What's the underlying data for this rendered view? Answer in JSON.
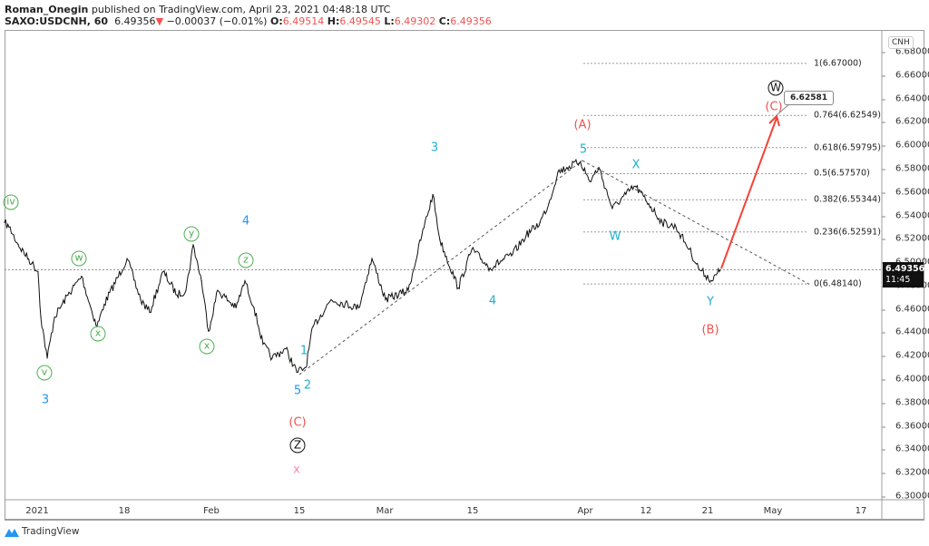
{
  "header": {
    "author": "Roman_Onegin",
    "published_text": "published on TradingView.com, April 23, 2021 04:48:18 UTC",
    "symbol": "SAXO:USDCNH, 60",
    "last": "6.49356",
    "change": "−0.00037 (−0.01%)",
    "o_label": "O:",
    "o": "6.49514",
    "h_label": "H:",
    "h": "6.49545",
    "l_label": "L:",
    "l": "6.49302",
    "c_label": "C:",
    "c": "6.49356",
    "down_arrow_icon": "triangle-down"
  },
  "currency_button": "CNH",
  "price_tag": {
    "price": "6.49356",
    "countdown": "11:45"
  },
  "callout": "6.62581",
  "footer": {
    "brand": "TradingView",
    "logo_icon": "tradingview-logo"
  },
  "colors": {
    "down": "#ef5350",
    "green_wave": "#4caf50",
    "blue_wave": "#2196f3",
    "cyan_wave": "#1eb0d0",
    "red_wave": "#ef5350",
    "pink_wave": "#f48fb1",
    "arrow": "#f44336"
  },
  "chart_data": {
    "type": "line",
    "symbol": "SAXO:USDCNH",
    "interval": "60",
    "ylim": [
      6.29,
      6.69
    ],
    "y_ticks": [
      "6.68000",
      "6.66000",
      "6.64000",
      "6.62000",
      "6.60000",
      "6.58000",
      "6.56000",
      "6.54000",
      "6.52000",
      "6.50000",
      "6.48000",
      "6.46000",
      "6.44000",
      "6.42000",
      "6.40000",
      "6.38000",
      "6.36000",
      "6.34000",
      "6.32000",
      "6.30000"
    ],
    "x_ticks": [
      "2021",
      "18",
      "Feb",
      "15",
      "Mar",
      "15",
      "Apr",
      "12",
      "21",
      "May",
      "17"
    ],
    "series": [
      [
        "2020-12-25 15:00",
        6.534
      ],
      [
        "2020-12-26 12:00",
        6.53
      ],
      [
        "2020-12-28 07:00",
        6.515
      ],
      [
        "2020-12-30 23:00",
        6.499
      ],
      [
        "2021-01-01 04:00",
        6.492
      ],
      [
        "2021-01-01 17:00",
        6.453
      ],
      [
        "2021-01-02 23:00",
        6.418
      ],
      [
        "2021-01-04 09:00",
        6.453
      ],
      [
        "2021-01-07 00:00",
        6.472
      ],
      [
        "2021-01-09 16:00",
        6.488
      ],
      [
        "2021-01-11 11:00",
        6.461
      ],
      [
        "2021-01-12 16:00",
        6.445
      ],
      [
        "2021-01-14 02:00",
        6.464
      ],
      [
        "2021-01-18 11:00",
        6.503
      ],
      [
        "2021-01-20 15:00",
        6.468
      ],
      [
        "2021-01-22 02:00",
        6.457
      ],
      [
        "2021-01-24 06:00",
        6.492
      ],
      [
        "2021-01-26 11:00",
        6.472
      ],
      [
        "2021-01-27 22:00",
        6.476
      ],
      [
        "2021-01-29 02:00",
        6.515
      ],
      [
        "2021-01-30 10:00",
        6.484
      ],
      [
        "2021-01-31 13:00",
        6.441
      ],
      [
        "2021-02-02 00:00",
        6.476
      ],
      [
        "2021-02-04 22:00",
        6.461
      ],
      [
        "2021-02-06 08:00",
        6.484
      ],
      [
        "2021-02-07 19:00",
        6.461
      ],
      [
        "2021-02-09 05:00",
        6.43
      ],
      [
        "2021-02-10 16:00",
        6.418
      ],
      [
        "2021-02-12 20:00",
        6.426
      ],
      [
        "2021-02-14 14:00",
        6.406
      ],
      [
        "2021-02-16 01:00",
        6.41
      ],
      [
        "2021-02-17 06:00",
        6.445
      ],
      [
        "2021-02-20 05:00",
        6.468
      ],
      [
        "2021-02-24 17:00",
        6.461
      ],
      [
        "2021-02-26 22:00",
        6.503
      ],
      [
        "2021-03-01 03:00",
        6.468
      ],
      [
        "2021-03-04 18:00",
        6.476
      ],
      [
        "2021-03-06 22:00",
        6.523
      ],
      [
        "2021-03-08 16:00",
        6.558
      ],
      [
        "2021-03-09 19:00",
        6.519
      ],
      [
        "2021-03-12 17:00",
        6.478
      ],
      [
        "2021-03-14 21:00",
        6.511
      ],
      [
        "2021-03-17 15:00",
        6.495
      ],
      [
        "2021-03-21 01:00",
        6.507
      ],
      [
        "2021-03-23 02:00",
        6.523
      ],
      [
        "2021-03-25 04:00",
        6.534
      ],
      [
        "2021-03-26 12:00",
        6.55
      ],
      [
        "2021-03-27 21:00",
        6.577
      ],
      [
        "2021-03-29 06:00",
        6.581
      ],
      [
        "2021-03-31 07:00",
        6.586
      ],
      [
        "2021-04-01 20:00",
        6.569
      ],
      [
        "2021-04-03 11:00",
        6.581
      ],
      [
        "2021-04-05 22:00",
        6.546
      ],
      [
        "2021-04-08 09:00",
        6.558
      ],
      [
        "2021-04-10 01:00",
        6.565
      ],
      [
        "2021-04-12 10:00",
        6.55
      ],
      [
        "2021-04-14 09:00",
        6.534
      ],
      [
        "2021-04-16 09:00",
        6.53
      ],
      [
        "2021-04-18 08:00",
        6.511
      ],
      [
        "2021-04-19 16:00",
        6.495
      ],
      [
        "2021-04-21 16:00",
        6.484
      ],
      [
        "2021-04-22 23:00",
        6.49356
      ]
    ],
    "current_price": 6.49356,
    "fibonacci": [
      {
        "ratio": "1",
        "price": 6.67,
        "label": "1(6.67000)"
      },
      {
        "ratio": "0.764",
        "price": 6.62549,
        "label": "0.764(6.62549)"
      },
      {
        "ratio": "0.618",
        "price": 6.59795,
        "label": "0.618(6.59795)"
      },
      {
        "ratio": "0.5",
        "price": 6.5757,
        "label": "0.5(6.57570)"
      },
      {
        "ratio": "0.382",
        "price": 6.55344,
        "label": "0.382(6.55344)"
      },
      {
        "ratio": "0.236",
        "price": 6.52591,
        "label": "0.236(6.52591)"
      },
      {
        "ratio": "0",
        "price": 6.4814,
        "label": "0(6.48140)"
      }
    ],
    "wave_labels": {
      "g_iv": "iv",
      "g_w": "w",
      "g_x1": "x",
      "g_v": "v",
      "g_y": "y",
      "g_z": "z",
      "g_x2": "x",
      "b_3": "3",
      "b_4": "4",
      "b_5": "5",
      "c_2": "2",
      "c_1": "1",
      "c_3": "3",
      "c_4": "4",
      "c_5": "5",
      "c_X": "X",
      "c_W": "W",
      "c_Y": "Y",
      "r_A": "(A)",
      "r_B": "(B)",
      "r_C1": "(C)",
      "r_C2": "(C)",
      "k_Z": "Z",
      "k_W": "W",
      "p_x": "x"
    }
  }
}
